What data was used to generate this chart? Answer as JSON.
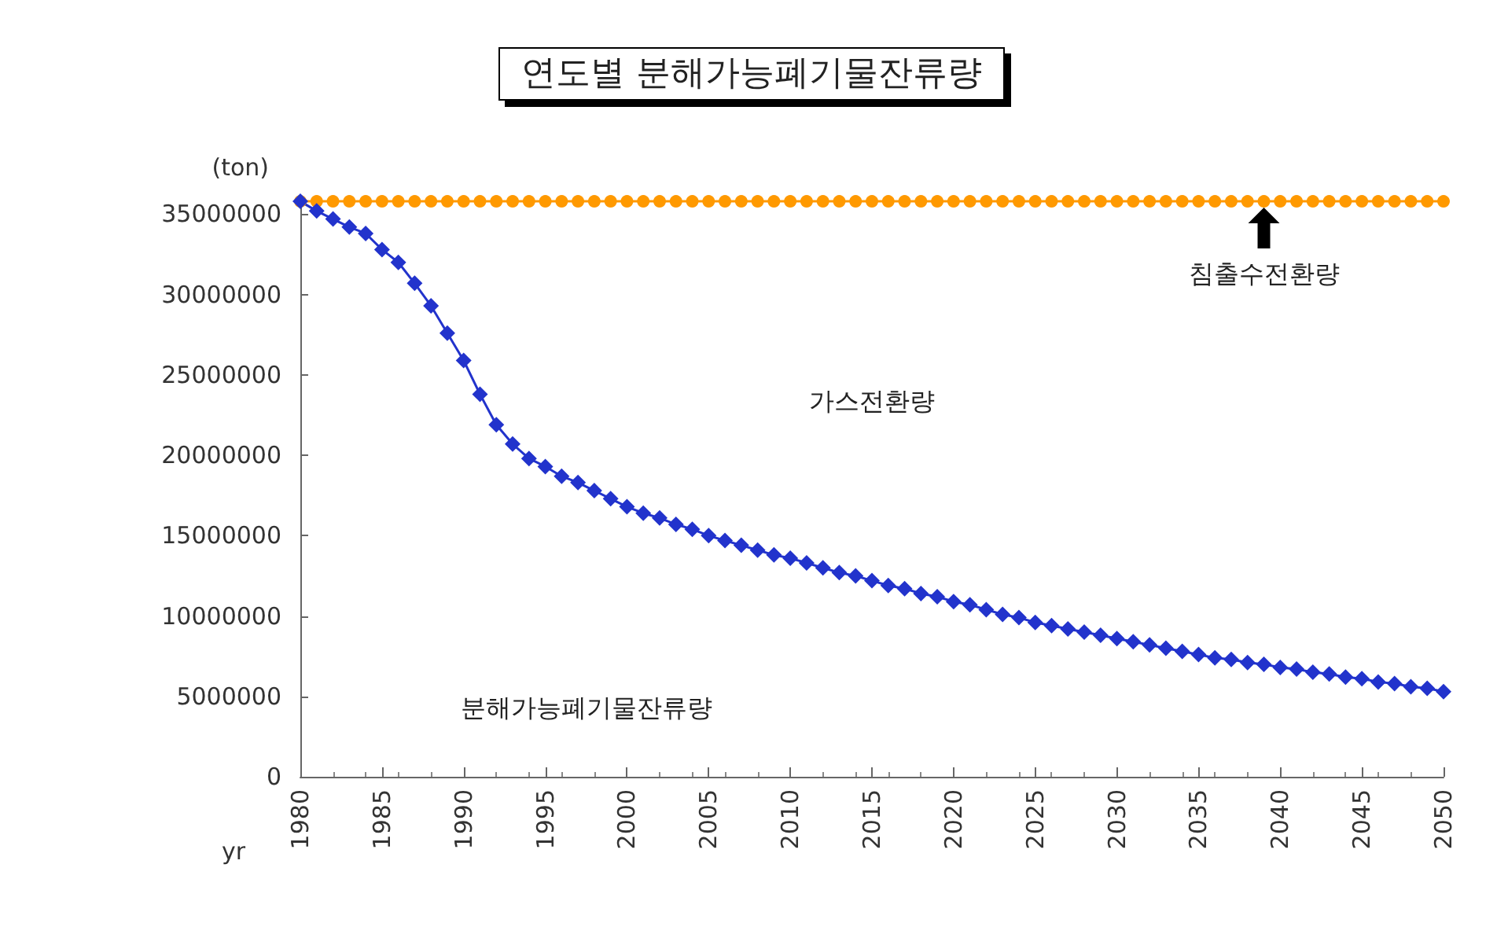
{
  "chart_data": {
    "type": "line",
    "title": "연도별 분해가능폐기물잔류량",
    "xlabel": "yr",
    "ylabel": "(ton)",
    "x": [
      1980,
      1981,
      1982,
      1983,
      1984,
      1985,
      1986,
      1987,
      1988,
      1989,
      1990,
      1991,
      1992,
      1993,
      1994,
      1995,
      1996,
      1997,
      1998,
      1999,
      2000,
      2001,
      2002,
      2003,
      2004,
      2005,
      2006,
      2007,
      2008,
      2009,
      2010,
      2011,
      2012,
      2013,
      2014,
      2015,
      2016,
      2017,
      2018,
      2019,
      2020,
      2021,
      2022,
      2023,
      2024,
      2025,
      2026,
      2027,
      2028,
      2029,
      2030,
      2031,
      2032,
      2033,
      2034,
      2035,
      2036,
      2037,
      2038,
      2039,
      2040,
      2041,
      2042,
      2043,
      2044,
      2045,
      2046,
      2047,
      2048,
      2049,
      2050
    ],
    "series": [
      {
        "color": "#ff9900",
        "marker": "circle",
        "values": [
          35800000,
          35800000,
          35800000,
          35800000,
          35800000,
          35800000,
          35800000,
          35800000,
          35800000,
          35800000,
          35800000,
          35800000,
          35800000,
          35800000,
          35800000,
          35800000,
          35800000,
          35800000,
          35800000,
          35800000,
          35800000,
          35800000,
          35800000,
          35800000,
          35800000,
          35800000,
          35800000,
          35800000,
          35800000,
          35800000,
          35800000,
          35800000,
          35800000,
          35800000,
          35800000,
          35800000,
          35800000,
          35800000,
          35800000,
          35800000,
          35800000,
          35800000,
          35800000,
          35800000,
          35800000,
          35800000,
          35800000,
          35800000,
          35800000,
          35800000,
          35800000,
          35800000,
          35800000,
          35800000,
          35800000,
          35800000,
          35800000,
          35800000,
          35800000,
          35800000,
          35800000,
          35800000,
          35800000,
          35800000,
          35800000,
          35800000,
          35800000,
          35800000,
          35800000,
          35800000,
          35800000
        ]
      },
      {
        "color": "#2233cc",
        "marker": "diamond",
        "values": [
          35800000,
          35200000,
          34700000,
          34200000,
          33800000,
          32800000,
          32000000,
          30700000,
          29300000,
          27600000,
          25900000,
          23800000,
          21900000,
          20700000,
          19800000,
          19300000,
          18700000,
          18300000,
          17800000,
          17300000,
          16800000,
          16400000,
          16100000,
          15700000,
          15400000,
          15000000,
          14700000,
          14400000,
          14100000,
          13800000,
          13600000,
          13300000,
          13000000,
          12700000,
          12500000,
          12200000,
          11900000,
          11700000,
          11400000,
          11200000,
          10900000,
          10700000,
          10400000,
          10100000,
          9900000,
          9600000,
          9400000,
          9200000,
          9000000,
          8800000,
          8600000,
          8400000,
          8200000,
          8000000,
          7800000,
          7600000,
          7400000,
          7300000,
          7100000,
          7000000,
          6800000,
          6700000,
          6500000,
          6400000,
          6200000,
          6100000,
          5900000,
          5800000,
          5600000,
          5500000,
          5300000
        ]
      }
    ],
    "xlim": [
      1980,
      2050
    ],
    "xticks": [
      1980,
      1985,
      1990,
      1995,
      2000,
      2005,
      2010,
      2015,
      2020,
      2025,
      2030,
      2035,
      2040,
      2045,
      2050
    ],
    "ylim": [
      0,
      36000000
    ],
    "yticks": [
      0,
      5000000,
      10000000,
      15000000,
      20000000,
      25000000,
      30000000,
      35000000
    ],
    "grid": false,
    "annotations": [
      {
        "text": "침출수전환량",
        "x": 2039,
        "y": 35800000
      },
      "가스전환량",
      "분해가능폐기물잔류량"
    ]
  }
}
